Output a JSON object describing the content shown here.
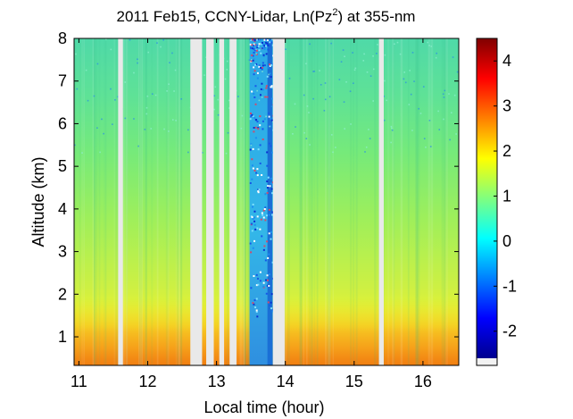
{
  "chart_data": {
    "type": "heatmap",
    "title_main": "2011 Feb15, CCNY-Lidar, Ln(Pz",
    "title_sup": "2",
    "title_tail": ") at 355-nm",
    "xlabel": "Local time (hour)",
    "ylabel": "Altitude (km)",
    "xlim": [
      10.93,
      16.52
    ],
    "ylim": [
      0.33,
      8.0
    ],
    "xticks": [
      11,
      12,
      13,
      14,
      15,
      16
    ],
    "yticks": [
      1,
      2,
      3,
      4,
      5,
      6,
      7,
      8
    ],
    "colorbar": {
      "range": [
        -2.6,
        4.5
      ],
      "ticks": [
        -2,
        -1,
        0,
        1,
        2,
        3,
        4
      ],
      "colormap": "jet"
    },
    "no_data_intervals_hours": [
      [
        11.57,
        11.64
      ],
      [
        12.62,
        12.79
      ],
      [
        12.85,
        12.96
      ],
      [
        13.04,
        13.11
      ],
      [
        13.19,
        13.29
      ],
      [
        13.82,
        13.99
      ],
      [
        15.36,
        15.43
      ]
    ],
    "dense_signal_interval_hours": [
      13.48,
      13.82
    ],
    "no_data_color": "#e9e9e9"
  }
}
